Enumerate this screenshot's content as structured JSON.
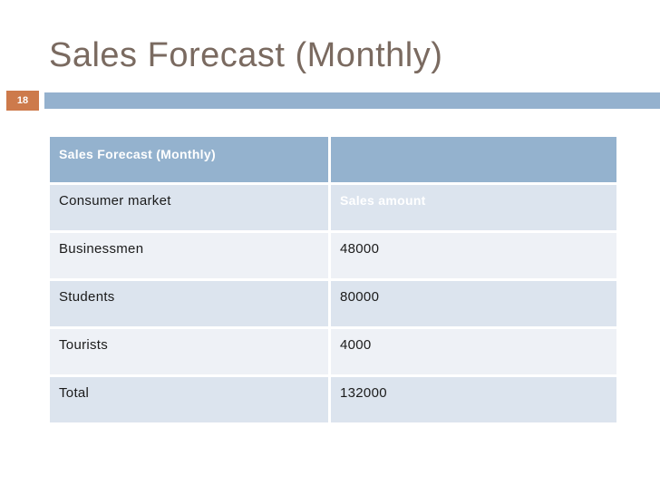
{
  "slide": {
    "title": "Sales Forecast (Monthly)",
    "page_number": "18"
  },
  "table": {
    "rows": [
      {
        "c1": "Sales Forecast (Monthly)",
        "c2": ""
      },
      {
        "c1": "Consumer market",
        "c2": "Sales amount"
      },
      {
        "c1": "Businessmen",
        "c2": "48000"
      },
      {
        "c1": "Students",
        "c2": "80000"
      },
      {
        "c1": "Tourists",
        "c2": "4000"
      },
      {
        "c1": "Total",
        "c2": "132000"
      }
    ]
  },
  "colors": {
    "accent_orange": "#cd7a4b",
    "accent_bar_blue": "#94b1ce",
    "table_header_blue": "#94b2ce",
    "band_medium": "#dce4ee",
    "band_light": "#eef1f6",
    "title_text": "#7a6a60",
    "body_text": "#1b1b1b",
    "inverse_text": "#ffffff"
  }
}
